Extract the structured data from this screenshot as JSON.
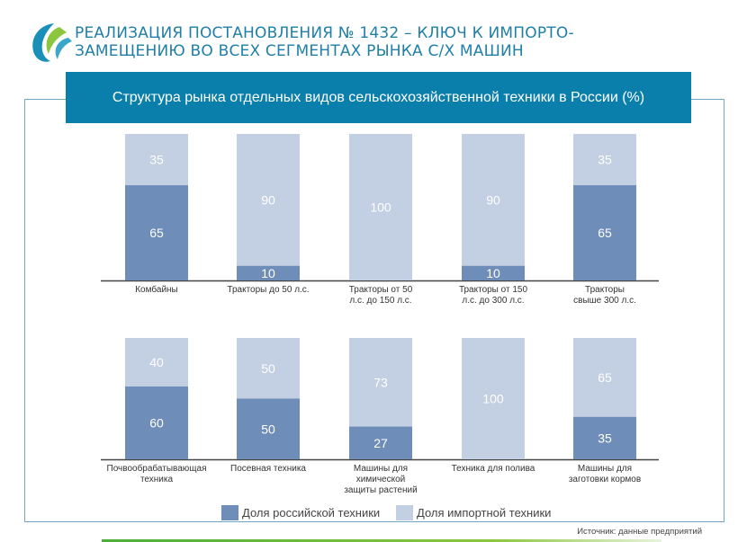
{
  "header": {
    "title_line1": "РЕАЛИЗАЦИЯ ПОСТАНОВЛЕНИЯ № 1432 – КЛЮЧ К ИМПОРТО-",
    "title_line2": "ЗАМЕЩЕНИЮ ВО ВСЕХ СЕГМЕНТАХ РЫНКА С/Х МАШИН"
  },
  "source": "Источник: данные предприятий",
  "chart_data": {
    "type": "bar",
    "stacked": true,
    "title": "Структура рынка отдельных видов сельскохозяйственной техники в России (%)",
    "ylim": [
      0,
      100
    ],
    "colors": {
      "russian": "#6f8db9",
      "import": "#c3cfe2"
    },
    "legend": [
      "Доля российской техники",
      "Доля импортной техники"
    ],
    "legend_position": "bottom",
    "categories": [
      [
        "Комбайны"
      ],
      [
        "Тракторы до 50 л.с."
      ],
      [
        "Тракторы от 50",
        "л.с. до 150 л.с."
      ],
      [
        "Тракторы от 150",
        "л.с. до 300 л.с."
      ],
      [
        "Тракторы",
        "свыше 300 л.с."
      ],
      [
        "Почвообрабатывающая",
        "техника"
      ],
      [
        "Посевная техника"
      ],
      [
        "Машины для",
        "химической",
        "защиты растений"
      ],
      [
        "Техника для полива"
      ],
      [
        "Машины для",
        "заготовки кормов"
      ]
    ],
    "series": [
      {
        "name": "Доля российской техники",
        "values": [
          65,
          10,
          0,
          10,
          65,
          60,
          50,
          27,
          0,
          35
        ]
      },
      {
        "name": "Доля импортной техники",
        "values": [
          35,
          90,
          100,
          90,
          35,
          40,
          50,
          73,
          100,
          65
        ]
      }
    ]
  }
}
